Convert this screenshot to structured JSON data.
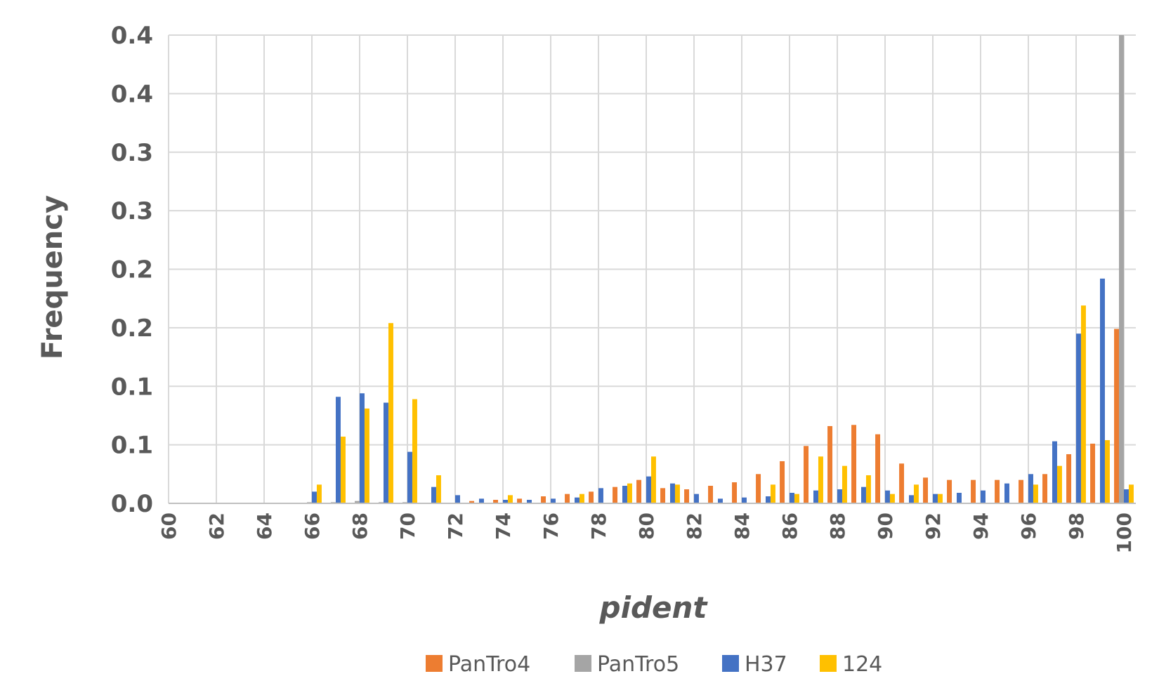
{
  "chart_data": {
    "type": "bar",
    "xlabel": "pident",
    "ylabel": "Frequency",
    "ylim": [
      0,
      0.4
    ],
    "y_tick_labels": [
      "0.0",
      "0.1",
      "0.1",
      "0.2",
      "0.2",
      "0.3",
      "0.3",
      "0.4",
      "0.4"
    ],
    "x_tick_labels": [
      "60",
      "62",
      "64",
      "66",
      "68",
      "70",
      "72",
      "74",
      "76",
      "78",
      "80",
      "82",
      "84",
      "86",
      "88",
      "90",
      "92",
      "94",
      "96",
      "98",
      "100"
    ],
    "grid": true,
    "legend_position": "bottom",
    "categories": [
      "60",
      "61",
      "62",
      "63",
      "64",
      "65",
      "66",
      "67",
      "68",
      "69",
      "70",
      "71",
      "72",
      "73",
      "74",
      "75",
      "76",
      "77",
      "78",
      "79",
      "80",
      "81",
      "82",
      "83",
      "84",
      "85",
      "86",
      "87",
      "88",
      "89",
      "90",
      "91",
      "92",
      "93",
      "94",
      "95",
      "96",
      "97",
      "98",
      "99",
      "100"
    ],
    "series": [
      {
        "name": "PanTro4",
        "color": "#ED7D31",
        "values": [
          0,
          0,
          0,
          0,
          0,
          0,
          0,
          0,
          0,
          0,
          0,
          0,
          0,
          0.002,
          0.003,
          0.004,
          0.006,
          0.008,
          0.01,
          0.014,
          0.02,
          0.013,
          0.012,
          0.015,
          0.018,
          0.025,
          0.036,
          0.049,
          0.066,
          0.067,
          0.059,
          0.034,
          0.022,
          0.02,
          0.02,
          0.02,
          0.02,
          0.025,
          0.042,
          0.051,
          0.149
        ]
      },
      {
        "name": "PanTro5",
        "color": "#A5A5A5",
        "values": [
          0,
          0,
          0,
          0,
          0,
          0,
          0.001,
          0.001,
          0.002,
          0.001,
          0.001,
          0,
          0,
          0,
          0,
          0,
          0,
          0,
          0,
          0,
          0,
          0,
          0,
          0,
          0,
          0,
          0,
          0,
          0,
          0,
          0,
          0,
          0,
          0,
          0,
          0,
          0,
          0,
          0,
          0,
          0.4
        ]
      },
      {
        "name": "H37",
        "color": "#4472C4",
        "values": [
          0,
          0,
          0,
          0,
          0,
          0,
          0.01,
          0.091,
          0.094,
          0.086,
          0.044,
          0.014,
          0.007,
          0.004,
          0.003,
          0.003,
          0.004,
          0.005,
          0.013,
          0.015,
          0.023,
          0.017,
          0.008,
          0.004,
          0.005,
          0.006,
          0.009,
          0.011,
          0.012,
          0.014,
          0.011,
          0.007,
          0.008,
          0.009,
          0.011,
          0.017,
          0.025,
          0.053,
          0.145,
          0.192,
          0.012
        ]
      },
      {
        "name": "124",
        "color": "#FFC000",
        "values": [
          0,
          0,
          0,
          0,
          0,
          0,
          0.016,
          0.057,
          0.081,
          0.154,
          0.089,
          0.024,
          0,
          0,
          0.007,
          0,
          0,
          0.008,
          0,
          0.017,
          0.04,
          0.016,
          0,
          0,
          0,
          0.016,
          0.008,
          0.04,
          0.032,
          0.024,
          0.008,
          0.016,
          0.008,
          0,
          0,
          0,
          0.016,
          0.032,
          0.169,
          0.054,
          0.016
        ]
      }
    ]
  }
}
